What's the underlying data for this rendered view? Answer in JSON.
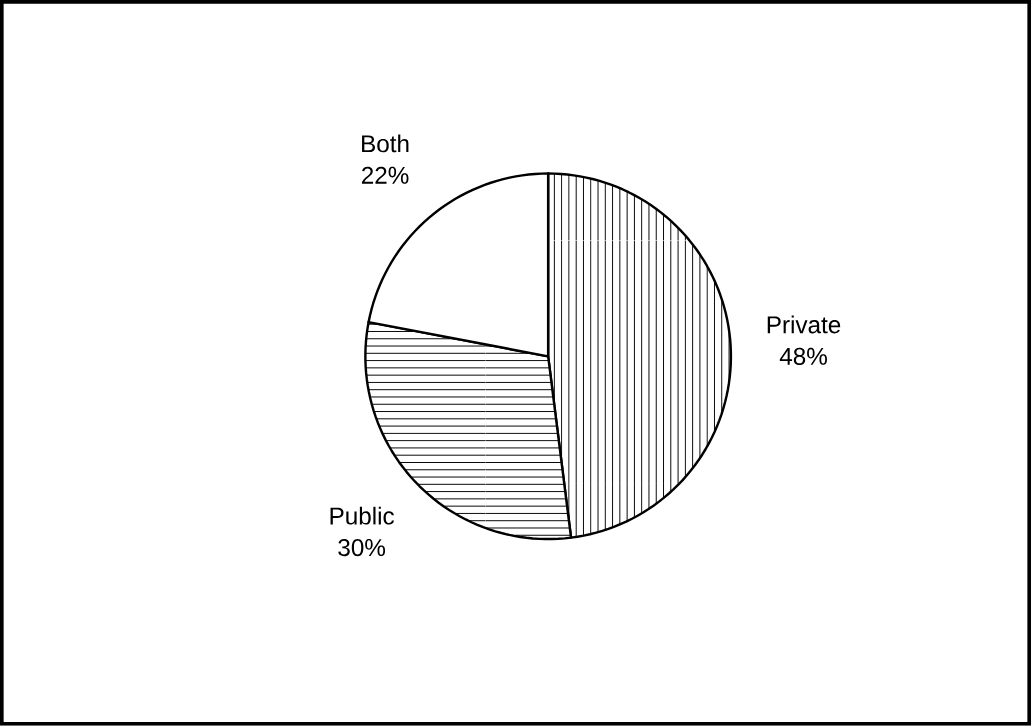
{
  "chart_data": {
    "type": "pie",
    "categories": [
      "Private",
      "Public",
      "Both"
    ],
    "values": [
      48,
      30,
      22
    ],
    "value_labels": [
      "48%",
      "30%",
      "22%"
    ],
    "colors": [
      "#ffffff",
      "#ffffff",
      "#ffffff"
    ]
  }
}
